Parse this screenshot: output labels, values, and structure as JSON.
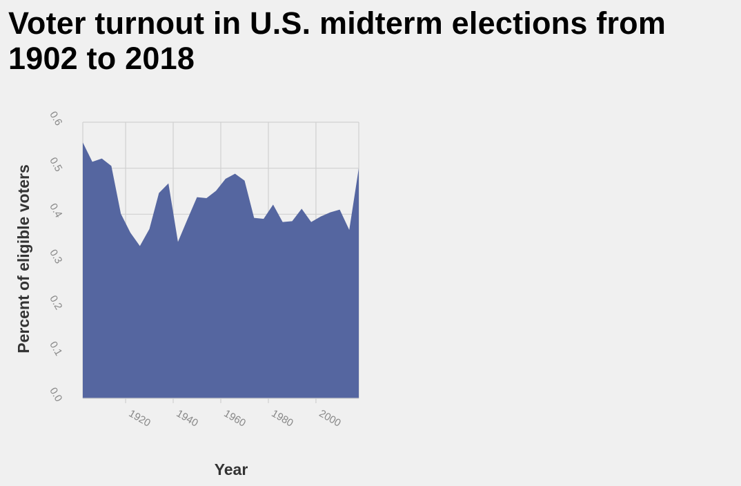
{
  "chart_data": {
    "type": "area",
    "title": "Voter turnout in U.S. midterm elections from 1902 to 2018",
    "xlabel": "Year",
    "ylabel": "Percent of eligible voters",
    "xlim": [
      1902,
      2018
    ],
    "ylim": [
      0,
      0.6
    ],
    "x_ticks": [
      1920,
      1940,
      1960,
      1980,
      2000
    ],
    "y_ticks": [
      "0.0",
      "0.1",
      "0.2",
      "0.3",
      "0.4",
      "0.5",
      "0.6"
    ],
    "grid": true,
    "legend": "none",
    "series": [
      {
        "color": "#5566a0",
        "x": [
          1902,
          1906,
          1910,
          1914,
          1918,
          1922,
          1926,
          1930,
          1934,
          1938,
          1942,
          1946,
          1950,
          1954,
          1958,
          1962,
          1966,
          1970,
          1974,
          1978,
          1982,
          1986,
          1990,
          1994,
          1998,
          2002,
          2006,
          2010,
          2014,
          2018
        ],
        "values": [
          0.556,
          0.514,
          0.521,
          0.505,
          0.401,
          0.36,
          0.331,
          0.368,
          0.446,
          0.467,
          0.34,
          0.389,
          0.437,
          0.435,
          0.451,
          0.477,
          0.488,
          0.473,
          0.392,
          0.39,
          0.421,
          0.383,
          0.385,
          0.412,
          0.383,
          0.395,
          0.404,
          0.41,
          0.366,
          0.5
        ]
      }
    ]
  }
}
